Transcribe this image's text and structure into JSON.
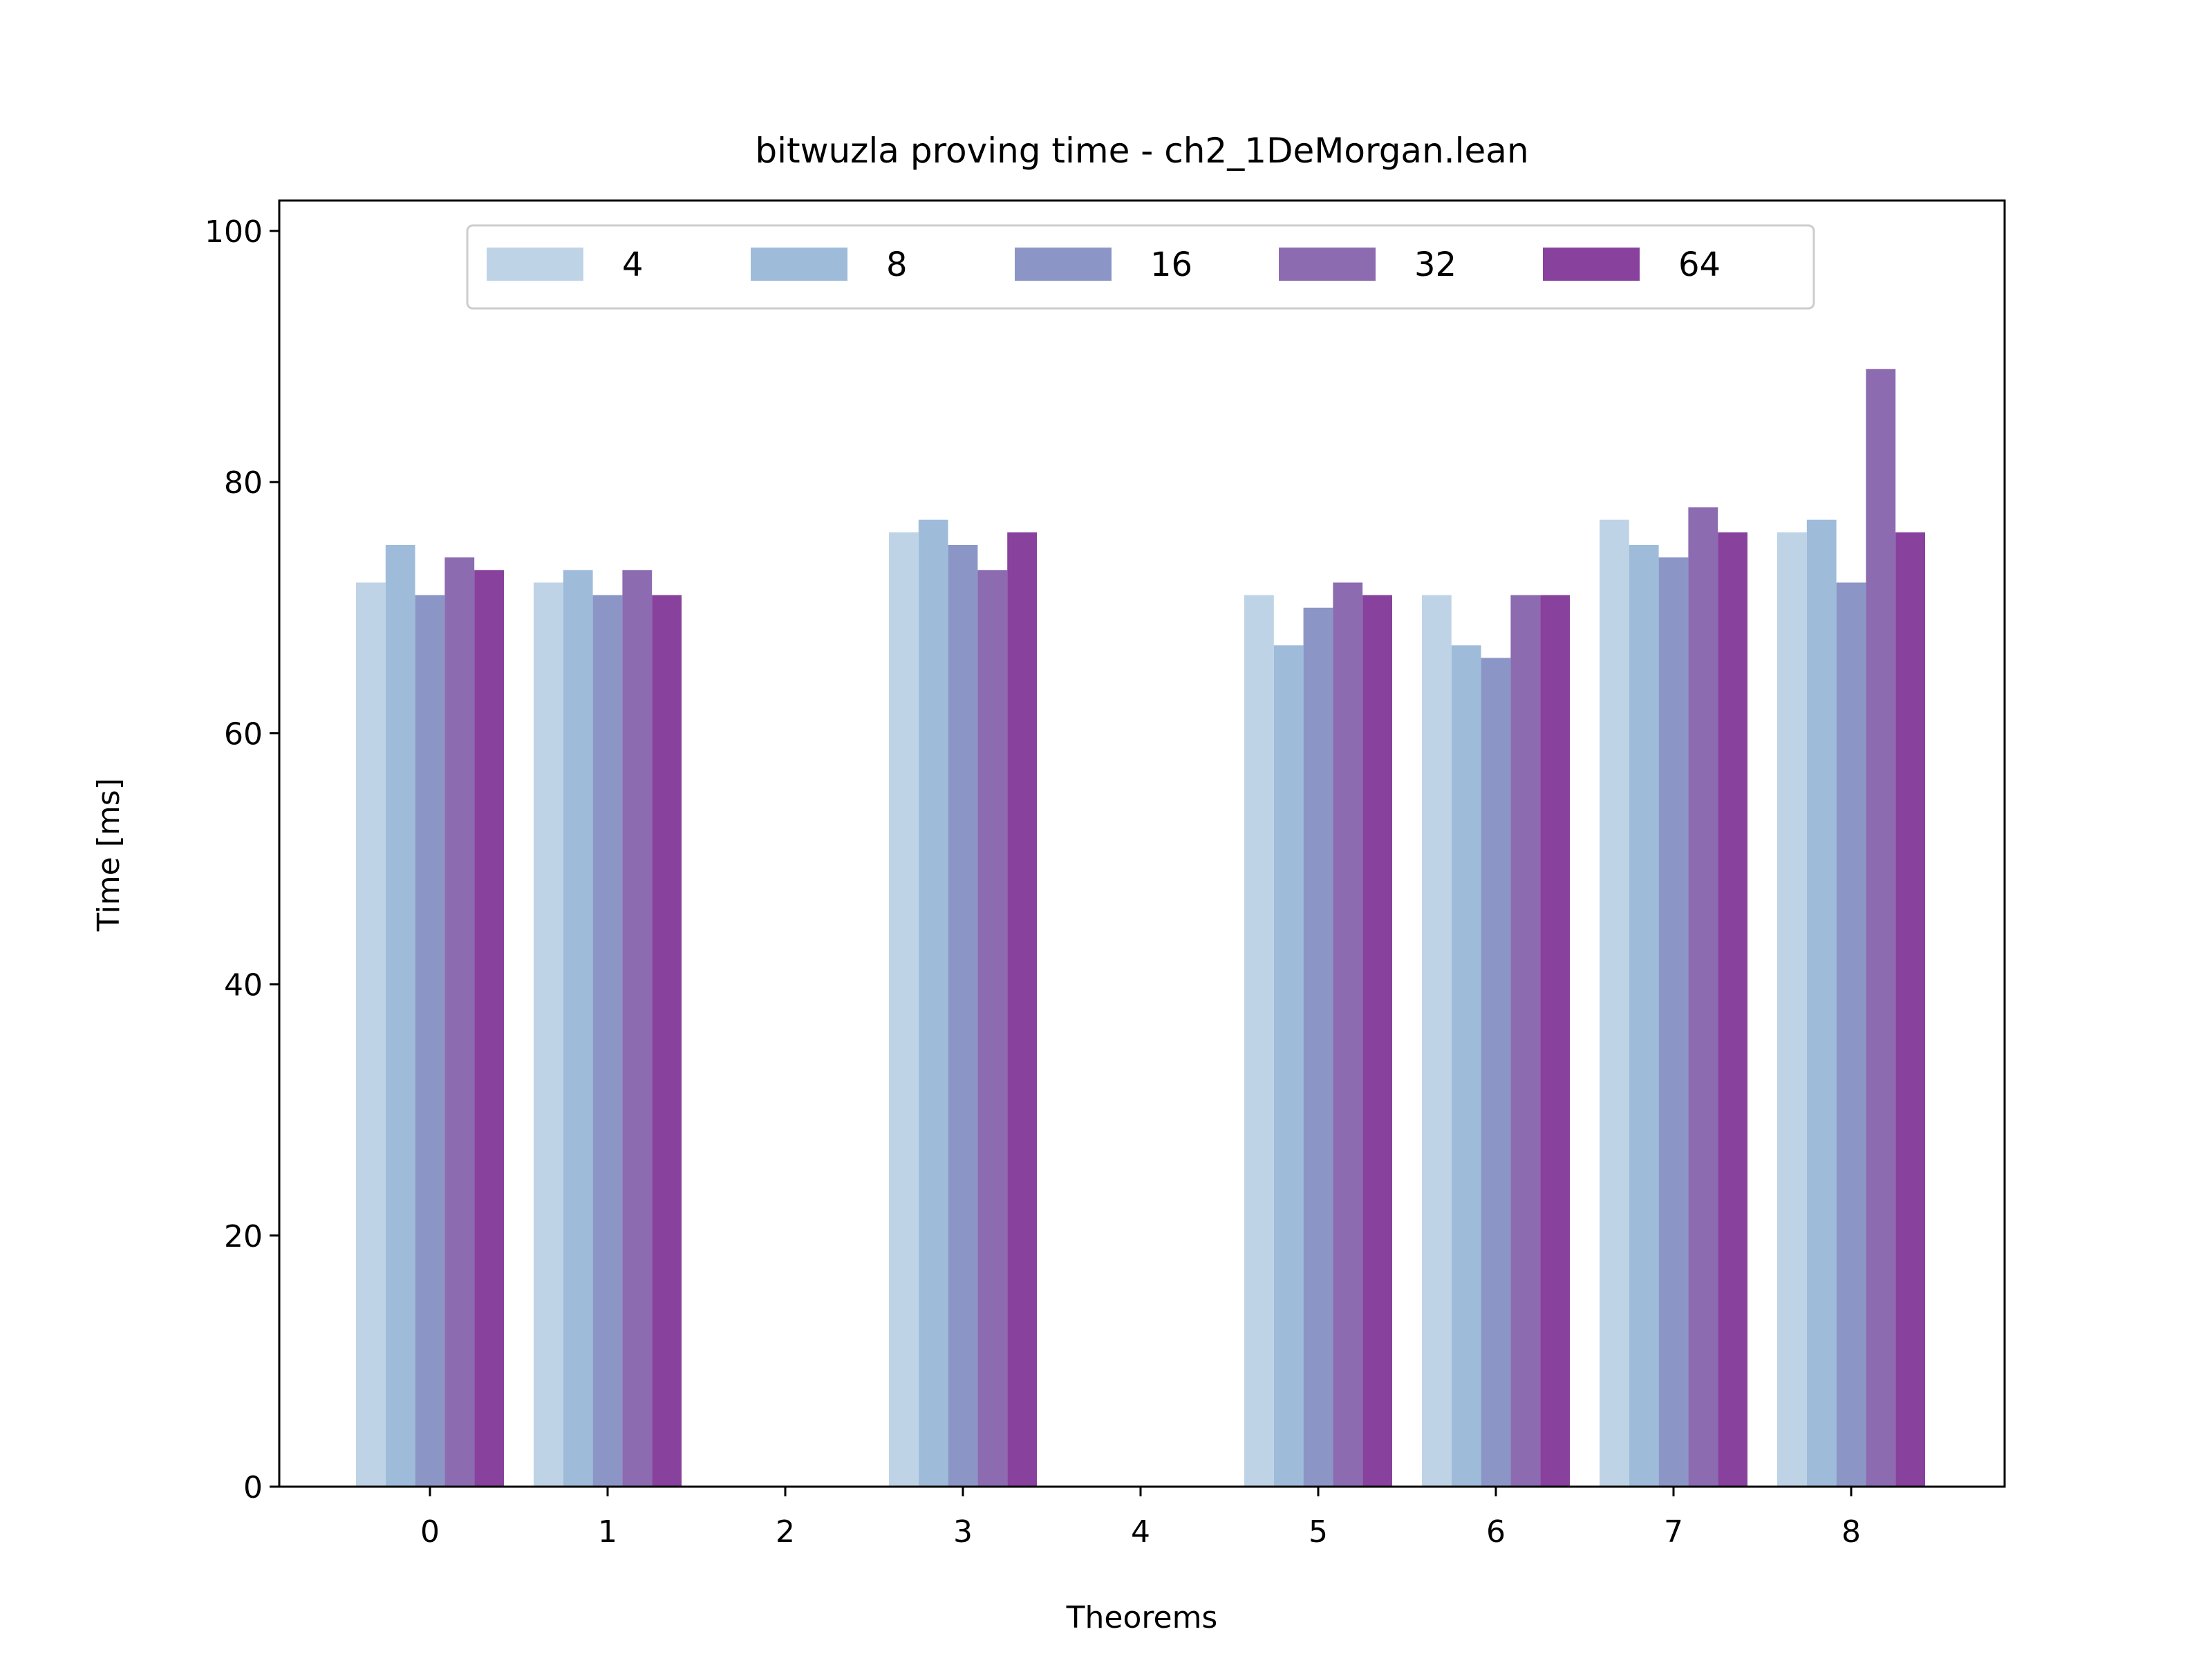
{
  "chart_data": {
    "type": "bar",
    "title": "bitwuzla proving time - ch2_1DeMorgan.lean",
    "xlabel": "Theorems",
    "ylabel": "Time [ms]",
    "categories": [
      "0",
      "1",
      "2",
      "3",
      "4",
      "5",
      "6",
      "7",
      "8"
    ],
    "ylim": [
      0,
      102.5
    ],
    "yticks": [
      0,
      20,
      40,
      60,
      80,
      100
    ],
    "grid": false,
    "legend_position": "top-center",
    "series": [
      {
        "name": "4",
        "color": "#bfd3e6",
        "values": [
          72,
          72,
          0,
          76,
          0,
          71,
          71,
          77,
          76
        ]
      },
      {
        "name": "8",
        "color": "#9ebcda",
        "values": [
          75,
          73,
          0,
          77,
          0,
          67,
          67,
          75,
          77
        ]
      },
      {
        "name": "16",
        "color": "#8c96c6",
        "values": [
          71,
          71,
          0,
          75,
          0,
          70,
          66,
          74,
          72
        ]
      },
      {
        "name": "32",
        "color": "#8c6bb1",
        "values": [
          74,
          73,
          0,
          73,
          0,
          72,
          71,
          78,
          89
        ]
      },
      {
        "name": "64",
        "color": "#88419d",
        "values": [
          73,
          71,
          0,
          76,
          0,
          71,
          71,
          76,
          76
        ]
      }
    ]
  }
}
